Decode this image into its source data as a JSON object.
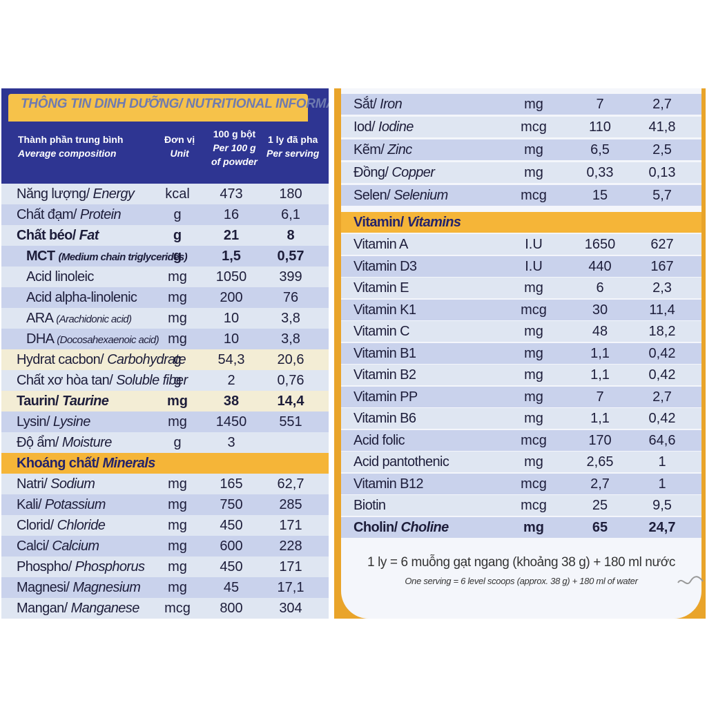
{
  "left": {
    "title": "THÔNG TIN DINH DƯỠNG/ NUTRITIONAL INFORMATION",
    "headers": {
      "col1_vi": "Thành phần trung bình",
      "col1_en": "Average composition",
      "col2_vi": "Đơn vị",
      "col2_en": "Unit",
      "col3_vi": "100 g bột",
      "col3_en1": "Per 100 g",
      "col3_en2": "of powder",
      "col4_vi": "1 ly đã pha",
      "col4_en": "Per serving"
    },
    "rows": [
      {
        "vi": "Năng lượng/ ",
        "en": "Energy",
        "unit": "kcal",
        "per100": "473",
        "serving": "180"
      },
      {
        "vi": "Chất đạm/ ",
        "en": "Protein",
        "unit": "g",
        "per100": "16",
        "serving": "6,1"
      },
      {
        "vi": "Chất béo/ ",
        "en": "Fat",
        "unit": "g",
        "per100": "21",
        "serving": "8"
      },
      {
        "vi": "MCT ",
        "en": "(Medium chain triglycerides)",
        "unit": "g",
        "per100": "1,5",
        "serving": "0,57"
      },
      {
        "vi": "Acid linoleic",
        "en": "",
        "unit": "mg",
        "per100": "1050",
        "serving": "399"
      },
      {
        "vi": "Acid alpha-linolenic",
        "en": "",
        "unit": "mg",
        "per100": "200",
        "serving": "76"
      },
      {
        "vi": "ARA ",
        "en": "(Arachidonic acid)",
        "unit": "mg",
        "per100": "10",
        "serving": "3,8"
      },
      {
        "vi": "DHA ",
        "en": "(Docosahexaenoic acid)",
        "unit": "mg",
        "per100": "10",
        "serving": "3,8"
      },
      {
        "vi": "Hydrat cacbon/ ",
        "en": "Carbohydrate",
        "unit": "g",
        "per100": "54,3",
        "serving": "20,6"
      },
      {
        "vi": "Chất xơ hòa tan/ ",
        "en": "Soluble fiber",
        "unit": "g",
        "per100": "2",
        "serving": "0,76"
      },
      {
        "vi": "Taurin/ ",
        "en": "Taurine",
        "unit": "mg",
        "per100": "38",
        "serving": "14,4"
      },
      {
        "vi": "Lysin/ ",
        "en": "Lysine",
        "unit": "mg",
        "per100": "1450",
        "serving": "551"
      },
      {
        "vi": "Độ ẩm/ ",
        "en": "Moisture",
        "unit": "g",
        "per100": "3",
        "serving": ""
      }
    ],
    "minerals_header": {
      "vi": "Khoáng chất/ ",
      "en": "Minerals"
    },
    "minerals": [
      {
        "vi": "Natri/ ",
        "en": "Sodium",
        "unit": "mg",
        "per100": "165",
        "serving": "62,7"
      },
      {
        "vi": "Kali/ ",
        "en": "Potassium",
        "unit": "mg",
        "per100": "750",
        "serving": "285"
      },
      {
        "vi": "Clorid/ ",
        "en": "Chloride",
        "unit": "mg",
        "per100": "450",
        "serving": "171"
      },
      {
        "vi": "Calci/ ",
        "en": "Calcium",
        "unit": "mg",
        "per100": "600",
        "serving": "228"
      },
      {
        "vi": "Phospho/ ",
        "en": "Phosphorus",
        "unit": "mg",
        "per100": "450",
        "serving": "171"
      },
      {
        "vi": "Magnesi/ ",
        "en": "Magnesium",
        "unit": "mg",
        "per100": "45",
        "serving": "17,1"
      },
      {
        "vi": "Mangan/ ",
        "en": "Manganese",
        "unit": "mcg",
        "per100": "800",
        "serving": "304"
      }
    ]
  },
  "right": {
    "minerals": [
      {
        "vi": "Sắt/ ",
        "en": "Iron",
        "unit": "mg",
        "per100": "7",
        "serving": "2,7"
      },
      {
        "vi": "Iod/ ",
        "en": "Iodine",
        "unit": "mcg",
        "per100": "110",
        "serving": "41,8"
      },
      {
        "vi": "Kẽm/ ",
        "en": "Zinc",
        "unit": "mg",
        "per100": "6,5",
        "serving": "2,5"
      },
      {
        "vi": "Đồng/ ",
        "en": "Copper",
        "unit": "mg",
        "per100": "0,33",
        "serving": "0,13"
      },
      {
        "vi": "Selen/ ",
        "en": "Selenium",
        "unit": "mcg",
        "per100": "15",
        "serving": "5,7"
      }
    ],
    "vitamins_header": {
      "vi": "Vitamin/ ",
      "en": "Vitamins"
    },
    "vitamins": [
      {
        "vi": "Vitamin A",
        "unit": "I.U",
        "per100": "1650",
        "serving": "627"
      },
      {
        "vi": "Vitamin D3",
        "unit": "I.U",
        "per100": "440",
        "serving": "167"
      },
      {
        "vi": "Vitamin E",
        "unit": "mg",
        "per100": "6",
        "serving": "2,3"
      },
      {
        "vi": "Vitamin K1",
        "unit": "mcg",
        "per100": "30",
        "serving": "11,4"
      },
      {
        "vi": "Vitamin C",
        "unit": "mg",
        "per100": "48",
        "serving": "18,2"
      },
      {
        "vi": "Vitamin B1",
        "unit": "mg",
        "per100": "1,1",
        "serving": "0,42"
      },
      {
        "vi": "Vitamin B2",
        "unit": "mg",
        "per100": "1,1",
        "serving": "0,42"
      },
      {
        "vi": "Vitamin PP",
        "unit": "mg",
        "per100": "7",
        "serving": "2,7"
      },
      {
        "vi": "Vitamin B6",
        "unit": "mg",
        "per100": "1,1",
        "serving": "0,42"
      },
      {
        "vi": "Acid folic",
        "unit": "mcg",
        "per100": "170",
        "serving": "64,6"
      },
      {
        "vi": "Acid pantothenic",
        "unit": "mg",
        "per100": "2,65",
        "serving": "1"
      },
      {
        "vi": "Vitamin B12",
        "unit": "mcg",
        "per100": "2,7",
        "serving": "1"
      },
      {
        "vi": "Biotin",
        "unit": "mcg",
        "per100": "25",
        "serving": "9,5"
      },
      {
        "vi": "Cholin/ ",
        "en": "Choline",
        "unit": "mg",
        "per100": "65",
        "serving": "24,7"
      }
    ],
    "footer_vi": "1 ly = 6 muỗng gạt ngang (khoảng 38 g) + 180 ml nước",
    "footer_en": "One serving = 6 level scoops (approx. 38 g) + 180 ml of water"
  }
}
